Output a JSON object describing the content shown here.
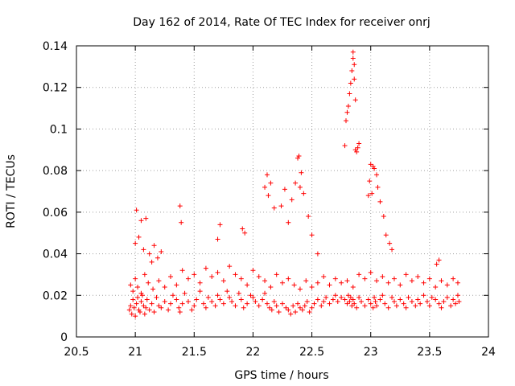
{
  "chart_data": {
    "type": "scatter",
    "title": "Day 162 of 2014, Rate Of TEC Index for receiver onrj",
    "xlabel": "GPS time / hours",
    "ylabel": "ROTI / TECUs",
    "xlim": [
      20.5,
      24
    ],
    "ylim": [
      0,
      0.14
    ],
    "grid": true,
    "marker": "plus",
    "color": "#ff0000",
    "x_ticks": [
      20.5,
      21,
      21.5,
      22,
      22.5,
      23,
      23.5,
      24
    ],
    "x_tick_labels": [
      "20.5",
      "21",
      "21.5",
      "22",
      "22.5",
      "23",
      "23.5",
      "24"
    ],
    "y_ticks": [
      0,
      0.02,
      0.04,
      0.06,
      0.08,
      0.1,
      0.12,
      0.14
    ],
    "y_tick_labels": [
      "0",
      "0.02",
      "0.04",
      "0.06",
      "0.08",
      "0.1",
      "0.12",
      "0.14"
    ],
    "series": [
      {
        "name": "ROTI",
        "x": [
          20.95,
          20.96,
          20.97,
          20.98,
          20.99,
          21.0,
          21.01,
          21.02,
          21.03,
          21.04,
          21.05,
          21.06,
          21.07,
          21.08,
          21.09,
          21.1,
          21.12,
          21.14,
          21.16,
          21.18,
          21.2,
          21.22,
          21.25,
          21.28,
          21.3,
          21.32,
          21.35,
          21.37,
          21.38,
          21.4,
          21.42,
          21.45,
          21.48,
          21.5,
          21.52,
          21.55,
          21.58,
          21.6,
          21.62,
          21.65,
          21.68,
          21.7,
          21.72,
          21.75,
          21.78,
          21.8,
          21.82,
          21.85,
          21.88,
          21.9,
          21.92,
          21.95,
          21.98,
          22.0,
          22.02,
          22.05,
          22.08,
          22.1,
          22.12,
          22.14,
          22.16,
          22.18,
          22.2,
          22.22,
          22.25,
          22.28,
          22.3,
          22.32,
          22.34,
          22.36,
          22.38,
          22.4,
          22.42,
          22.44,
          22.46,
          22.48,
          22.5,
          22.52,
          22.55,
          22.58,
          22.6,
          22.62,
          22.65,
          22.68,
          22.7,
          22.72,
          22.75,
          22.78,
          22.8,
          22.81,
          22.82,
          22.83,
          22.84,
          22.85,
          22.86,
          22.88,
          22.9,
          22.92,
          22.95,
          22.98,
          23.0,
          23.02,
          23.03,
          23.04,
          23.05,
          23.08,
          23.1,
          23.12,
          23.15,
          23.18,
          23.2,
          23.22,
          23.25,
          23.28,
          23.3,
          23.32,
          23.35,
          23.38,
          23.4,
          23.42,
          23.45,
          23.48,
          23.5,
          23.52,
          23.55,
          23.58,
          23.6,
          23.62,
          23.65,
          23.68,
          23.7,
          23.72,
          23.74,
          23.75,
          20.96,
          20.98,
          21.0,
          21.02,
          21.05,
          21.08,
          21.11,
          21.15,
          21.2,
          21.25,
          21.3,
          21.35,
          21.4,
          21.45,
          21.5,
          21.55,
          21.6,
          21.65,
          21.7,
          21.75,
          21.8,
          21.85,
          21.9,
          21.95,
          22.0,
          22.05,
          22.1,
          22.15,
          22.2,
          22.25,
          22.3,
          22.35,
          22.4,
          22.45,
          22.5,
          22.55,
          22.6,
          22.65,
          22.7,
          22.75,
          22.8,
          22.85,
          22.9,
          22.95,
          23.0,
          23.05,
          23.1,
          23.15,
          23.2,
          23.25,
          23.3,
          23.35,
          23.4,
          23.45,
          23.5,
          23.55,
          23.6,
          23.65,
          23.7,
          23.74,
          21.0,
          21.01,
          21.03,
          21.05,
          21.07,
          21.09,
          21.12,
          21.14,
          21.16,
          21.19,
          21.22,
          21.38,
          21.39,
          21.7,
          21.72,
          21.91,
          21.93,
          22.1,
          22.12,
          22.13,
          22.15,
          22.18,
          22.24,
          22.27,
          22.3,
          22.33,
          22.36,
          22.38,
          22.39,
          22.4,
          22.41,
          22.43,
          22.47,
          22.5,
          22.55,
          22.98,
          22.99,
          23.0,
          23.01,
          23.02,
          23.03,
          23.05,
          23.06,
          23.08,
          23.11,
          23.13,
          23.16,
          23.18,
          23.56,
          23.58
        ],
        "y": [
          0.013,
          0.015,
          0.011,
          0.018,
          0.014,
          0.01,
          0.016,
          0.019,
          0.013,
          0.012,
          0.017,
          0.02,
          0.015,
          0.011,
          0.014,
          0.018,
          0.013,
          0.016,
          0.012,
          0.019,
          0.015,
          0.014,
          0.017,
          0.013,
          0.016,
          0.02,
          0.018,
          0.014,
          0.012,
          0.016,
          0.021,
          0.017,
          0.013,
          0.015,
          0.018,
          0.022,
          0.016,
          0.014,
          0.019,
          0.017,
          0.015,
          0.02,
          0.018,
          0.016,
          0.022,
          0.019,
          0.017,
          0.015,
          0.021,
          0.018,
          0.014,
          0.016,
          0.02,
          0.019,
          0.017,
          0.015,
          0.018,
          0.021,
          0.016,
          0.014,
          0.013,
          0.017,
          0.015,
          0.012,
          0.016,
          0.014,
          0.013,
          0.011,
          0.015,
          0.012,
          0.016,
          0.014,
          0.013,
          0.015,
          0.017,
          0.012,
          0.014,
          0.016,
          0.018,
          0.015,
          0.017,
          0.019,
          0.016,
          0.018,
          0.02,
          0.017,
          0.019,
          0.018,
          0.016,
          0.02,
          0.017,
          0.019,
          0.015,
          0.018,
          0.016,
          0.014,
          0.019,
          0.017,
          0.015,
          0.018,
          0.016,
          0.014,
          0.019,
          0.017,
          0.015,
          0.018,
          0.02,
          0.016,
          0.014,
          0.019,
          0.017,
          0.015,
          0.018,
          0.016,
          0.014,
          0.019,
          0.017,
          0.015,
          0.018,
          0.016,
          0.02,
          0.017,
          0.015,
          0.019,
          0.018,
          0.016,
          0.014,
          0.017,
          0.019,
          0.015,
          0.018,
          0.016,
          0.02,
          0.017,
          0.025,
          0.022,
          0.028,
          0.024,
          0.021,
          0.03,
          0.026,
          0.023,
          0.027,
          0.024,
          0.029,
          0.025,
          0.032,
          0.028,
          0.03,
          0.026,
          0.033,
          0.029,
          0.031,
          0.027,
          0.034,
          0.03,
          0.028,
          0.025,
          0.032,
          0.029,
          0.027,
          0.024,
          0.03,
          0.026,
          0.028,
          0.025,
          0.023,
          0.027,
          0.024,
          0.026,
          0.029,
          0.025,
          0.028,
          0.026,
          0.027,
          0.024,
          0.03,
          0.028,
          0.031,
          0.027,
          0.029,
          0.026,
          0.028,
          0.025,
          0.03,
          0.027,
          0.029,
          0.026,
          0.028,
          0.024,
          0.027,
          0.025,
          0.028,
          0.026,
          0.045,
          0.061,
          0.048,
          0.056,
          0.042,
          0.057,
          0.04,
          0.036,
          0.044,
          0.038,
          0.041,
          0.063,
          0.055,
          0.047,
          0.054,
          0.052,
          0.05,
          0.072,
          0.078,
          0.068,
          0.074,
          0.062,
          0.063,
          0.071,
          0.055,
          0.066,
          0.074,
          0.086,
          0.087,
          0.072,
          0.079,
          0.069,
          0.058,
          0.049,
          0.04,
          0.068,
          0.075,
          0.083,
          0.069,
          0.082,
          0.081,
          0.078,
          0.072,
          0.065,
          0.058,
          0.049,
          0.045,
          0.042,
          0.035,
          0.037
        ],
        "x2": [
          22.78,
          22.79,
          22.8,
          22.81,
          22.82,
          22.83,
          22.84,
          22.85,
          22.85,
          22.86,
          22.86,
          22.87,
          22.87,
          22.88,
          22.89,
          22.9
        ],
        "y2": [
          0.092,
          0.104,
          0.108,
          0.111,
          0.117,
          0.122,
          0.128,
          0.134,
          0.137,
          0.131,
          0.124,
          0.114,
          0.09,
          0.089,
          0.091,
          0.093
        ]
      }
    ]
  }
}
